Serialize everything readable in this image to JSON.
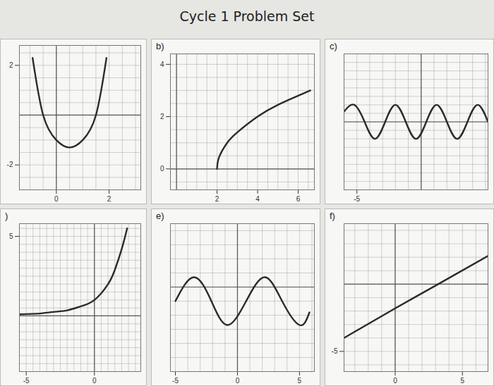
{
  "title": "Cycle 1 Problem Set",
  "chart_data": [
    {
      "type": "line",
      "color": "#2b2b2b",
      "grid": true,
      "x": [
        -0.9,
        -0.5,
        0,
        0.5,
        1,
        1.5,
        1.9
      ],
      "values": [
        2.3,
        0,
        -1.0,
        -1.3,
        -1.0,
        0,
        2.3
      ],
      "xlim": [
        -1.4,
        3.2
      ],
      "ylim": [
        -3,
        2.8
      ],
      "xticks": [
        0,
        2
      ],
      "yticks": [
        -2,
        2
      ]
    },
    {
      "type": "line",
      "title": "b)",
      "color": "#2b2b2b",
      "grid": true,
      "x": [
        2,
        2.1,
        2.5,
        3,
        4,
        5,
        6,
        6.6
      ],
      "values": [
        0,
        0.45,
        1,
        1.4,
        2,
        2.45,
        2.8,
        3.0
      ],
      "xlim": [
        -0.3,
        6.8
      ],
      "ylim": [
        -0.8,
        4.4
      ],
      "xticks": [
        2,
        4,
        6
      ],
      "yticks": [
        0,
        2,
        4
      ]
    },
    {
      "type": "line",
      "title": "c)",
      "color": "#2b2b2b",
      "grid": true,
      "x": [
        -6.0,
        -5.2,
        -4.4,
        -3.6,
        -2.8,
        -2.0,
        -1.2,
        -0.4,
        0.4,
        1.2,
        2.0,
        2.8,
        3.6,
        4.4,
        5.2
      ],
      "values": [
        0.6,
        1,
        0,
        -1,
        0,
        1,
        0,
        -1,
        0,
        1,
        0,
        -1,
        0,
        1,
        0
      ],
      "xlim": [
        -6,
        5.2
      ],
      "ylim": [
        -4,
        4
      ],
      "xticks": [
        -5
      ],
      "yticks": []
    },
    {
      "type": "line",
      "title": ")",
      "color": "#2b2b2b",
      "grid": true,
      "x": [
        -5.5,
        -4,
        -3,
        -2,
        -1,
        0,
        1,
        1.5,
        2,
        2.4
      ],
      "values": [
        0.1,
        0.15,
        0.25,
        0.35,
        0.6,
        1.0,
        2.0,
        2.9,
        4.2,
        5.5
      ],
      "xlim": [
        -5.5,
        3.4
      ],
      "ylim": [
        -3.5,
        5.8
      ],
      "xticks": [
        -5,
        0
      ],
      "yticks": [
        5
      ]
    },
    {
      "type": "line",
      "title": "e)",
      "color": "#2b2b2b",
      "grid": true,
      "x": [
        -5.0,
        -3.5,
        -2.1,
        -0.8,
        0.7,
        2.2,
        3.6,
        5.0,
        5.8
      ],
      "values": [
        -1.0,
        0.7,
        -1.0,
        -2.7,
        -1.0,
        0.7,
        -1.0,
        -2.7,
        -1.8
      ],
      "xlim": [
        -5.4,
        6.2
      ],
      "ylim": [
        -6,
        4.5
      ],
      "xticks": [
        -5,
        0,
        5
      ],
      "yticks": []
    },
    {
      "type": "line",
      "title": "f)",
      "color": "#2b2b2b",
      "grid": true,
      "x": [
        -3.8,
        0,
        3.2,
        6.9
      ],
      "values": [
        -4.0,
        -1.8,
        0,
        2.1
      ],
      "xlim": [
        -3.8,
        6.9
      ],
      "ylim": [
        -6.5,
        4.5
      ],
      "xticks": [
        0,
        5
      ],
      "yticks": [
        -5
      ]
    }
  ]
}
